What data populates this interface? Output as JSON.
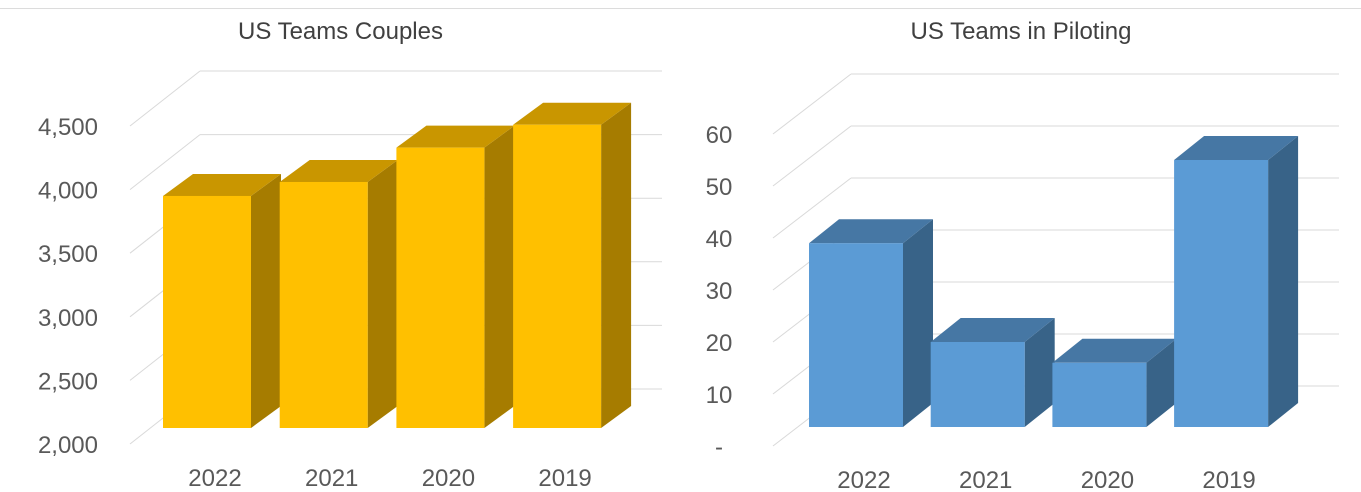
{
  "chart_data": [
    {
      "type": "bar",
      "title": "US Teams Couples",
      "xlabel": "",
      "ylabel": "",
      "categories": [
        "2022",
        "2021",
        "2020",
        "2019"
      ],
      "values": [
        3950,
        4060,
        4330,
        4510
      ],
      "ylim": [
        2000,
        4500
      ],
      "y_ticks": [
        "2,000",
        "2,500",
        "3,000",
        "3,500",
        "4,000",
        "4,500"
      ],
      "y_tick_values": [
        2000,
        2500,
        3000,
        3500,
        4000,
        4500
      ],
      "grid": true,
      "legend": "none",
      "bar_color": "#FFC000",
      "bar_side_color": "#A67C00",
      "bar_top_color": "#C99600"
    },
    {
      "type": "bar",
      "title": "US Teams in Piloting",
      "xlabel": "",
      "ylabel": "",
      "categories": [
        "2022",
        "2021",
        "2020",
        "2019"
      ],
      "values": [
        39,
        20,
        16,
        55
      ],
      "ylim": [
        0,
        60
      ],
      "y_ticks": [
        "-",
        "10",
        "20",
        "30",
        "40",
        "50",
        "60"
      ],
      "y_tick_values": [
        0,
        10,
        20,
        30,
        40,
        50,
        60
      ],
      "grid": true,
      "legend": "none",
      "bar_color": "#5B9BD5",
      "bar_side_color": "#386388",
      "bar_top_color": "#4677A4"
    }
  ]
}
